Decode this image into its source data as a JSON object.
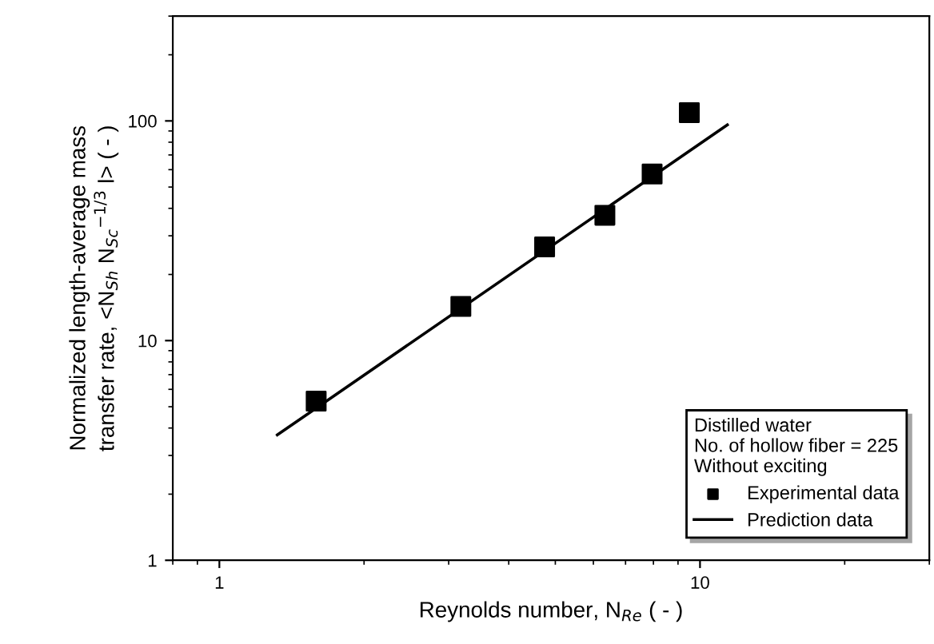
{
  "chart_data": {
    "type": "scatter",
    "xlabel": "Reynolds number, N$_{Re}$ ( - )",
    "ylabel": "Normalized length-average mass\ntransfer rate, <N$_{Sh}$ N$_{Sc}$$^{−1/3}$ l> ( - )",
    "legend_title": "Distilled water\nNo. of hollow fiber = 225\nWithout exciting",
    "series": [
      {
        "name": "Experimental data",
        "marker": "square",
        "color": "#000000",
        "x": [
          1.59,
          3.18,
          4.75,
          6.34,
          7.95,
          9.5
        ],
        "values": [
          5.3,
          14.3,
          26.7,
          37.2,
          57.3,
          109
        ]
      },
      {
        "name": "Prediction data",
        "type": "line",
        "marker": "none",
        "line_style": "solid",
        "color": "#000000",
        "x": [
          1.32,
          11.4
        ],
        "values": [
          3.72,
          96
        ]
      }
    ],
    "log": "xy",
    "xlim": [
      0.8,
      30
    ],
    "ylim": [
      1,
      300
    ],
    "xticks": [
      1,
      10
    ],
    "yticks": [
      1,
      10,
      100
    ],
    "grid": false,
    "legend": "bottom right"
  }
}
